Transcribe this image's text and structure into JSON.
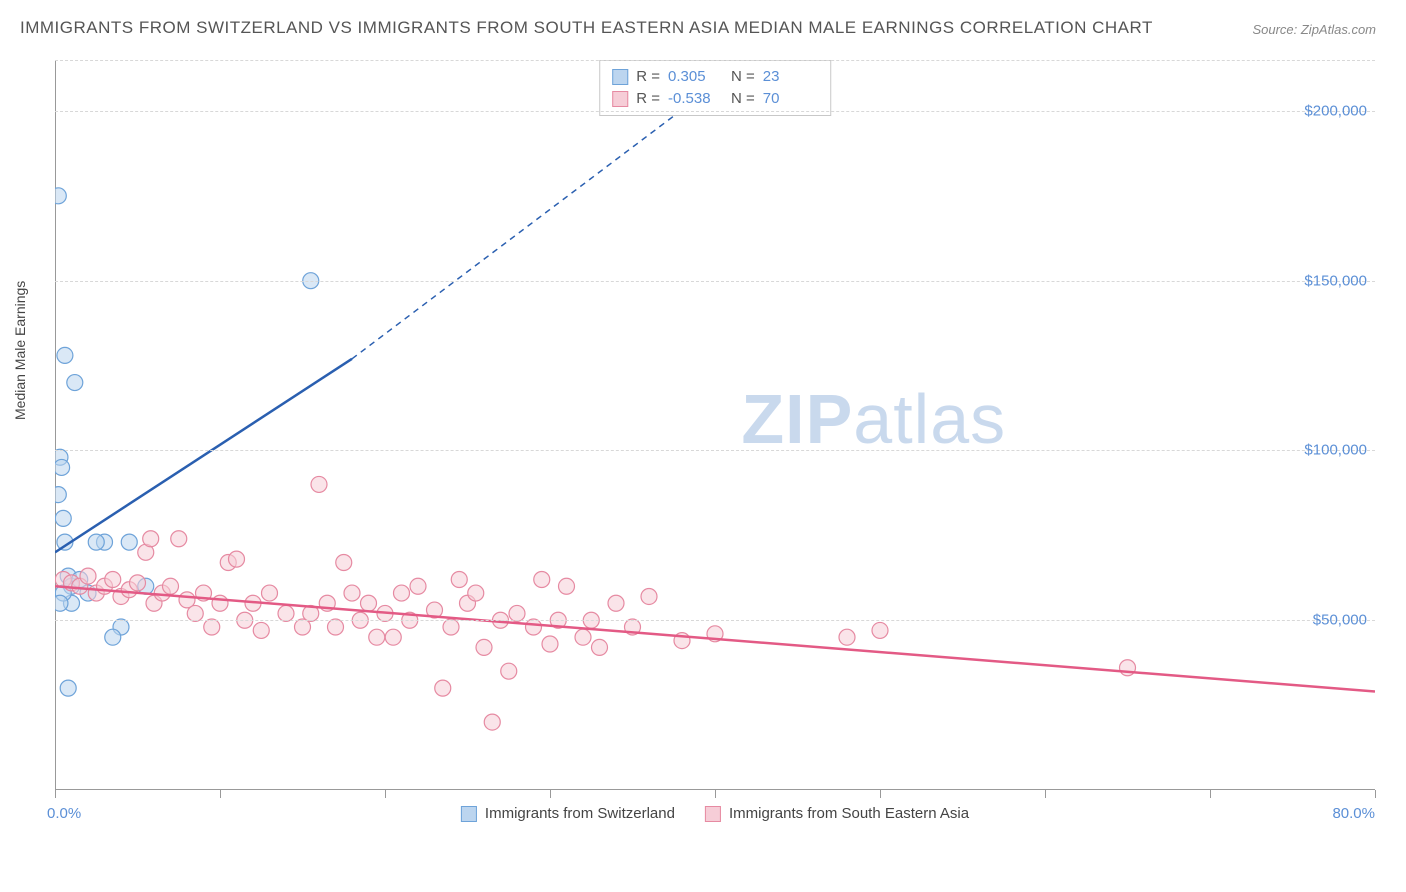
{
  "title": "IMMIGRANTS FROM SWITZERLAND VS IMMIGRANTS FROM SOUTH EASTERN ASIA MEDIAN MALE EARNINGS CORRELATION CHART",
  "source": "Source: ZipAtlas.com",
  "watermark_a": "ZIP",
  "watermark_b": "atlas",
  "y_axis_label": "Median Male Earnings",
  "chart": {
    "type": "scatter",
    "xlim": [
      0,
      80
    ],
    "ylim": [
      0,
      215000
    ],
    "x_tick_positions": [
      0,
      10,
      20,
      30,
      40,
      50,
      60,
      70,
      80
    ],
    "x_lim_labels": {
      "min": "0.0%",
      "max": "80.0%"
    },
    "y_grid": [
      {
        "v": 50000,
        "label": "$50,000"
      },
      {
        "v": 100000,
        "label": "$100,000"
      },
      {
        "v": 150000,
        "label": "$150,000"
      },
      {
        "v": 200000,
        "label": "$200,000"
      }
    ],
    "background_color": "#ffffff",
    "grid_color": "#d8d8d8",
    "axis_color": "#999999",
    "tick_label_color": "#5b8fd6",
    "marker_radius": 8,
    "marker_opacity": 0.55,
    "series": [
      {
        "name": "Immigrants from Switzerland",
        "color_fill": "#bcd5ef",
        "color_stroke": "#6ea3d9",
        "line_color": "#2a5fb0",
        "r_label": "R =",
        "r_value": "0.305",
        "n_label": "N =",
        "n_value": "23",
        "regression": {
          "x1": 0,
          "y1": 70000,
          "x2_solid": 18,
          "y2_solid": 127000,
          "x2": 42,
          "y2": 215000
        },
        "points": [
          [
            0.2,
            175000
          ],
          [
            0.6,
            128000
          ],
          [
            0.3,
            98000
          ],
          [
            0.4,
            95000
          ],
          [
            0.2,
            87000
          ],
          [
            0.5,
            80000
          ],
          [
            0.6,
            73000
          ],
          [
            1.2,
            120000
          ],
          [
            3.0,
            73000
          ],
          [
            2.5,
            73000
          ],
          [
            4.5,
            73000
          ],
          [
            0.8,
            63000
          ],
          [
            1.0,
            60000
          ],
          [
            1.5,
            62000
          ],
          [
            2.0,
            58000
          ],
          [
            1.0,
            55000
          ],
          [
            0.5,
            58000
          ],
          [
            0.3,
            55000
          ],
          [
            4.0,
            48000
          ],
          [
            3.5,
            45000
          ],
          [
            0.8,
            30000
          ],
          [
            5.5,
            60000
          ],
          [
            15.5,
            150000
          ]
        ]
      },
      {
        "name": "Immigrants from South Eastern Asia",
        "color_fill": "#f6cdd7",
        "color_stroke": "#e68aa2",
        "line_color": "#e35a85",
        "r_label": "R =",
        "r_value": "-0.538",
        "n_label": "N =",
        "n_value": "70",
        "regression": {
          "x1": 0,
          "y1": 60000,
          "x2_solid": 80,
          "y2_solid": 29000,
          "x2": 80,
          "y2": 29000
        },
        "points": [
          [
            0.5,
            62000
          ],
          [
            1.0,
            61000
          ],
          [
            1.5,
            60000
          ],
          [
            2.0,
            63000
          ],
          [
            2.5,
            58000
          ],
          [
            3.0,
            60000
          ],
          [
            3.5,
            62000
          ],
          [
            4.0,
            57000
          ],
          [
            4.5,
            59000
          ],
          [
            5.0,
            61000
          ],
          [
            5.5,
            70000
          ],
          [
            6.0,
            55000
          ],
          [
            6.5,
            58000
          ],
          [
            7.0,
            60000
          ],
          [
            7.5,
            74000
          ],
          [
            8.0,
            56000
          ],
          [
            8.5,
            52000
          ],
          [
            9.0,
            58000
          ],
          [
            9.5,
            48000
          ],
          [
            10.0,
            55000
          ],
          [
            10.5,
            67000
          ],
          [
            11.0,
            68000
          ],
          [
            11.5,
            50000
          ],
          [
            12.0,
            55000
          ],
          [
            12.5,
            47000
          ],
          [
            13.0,
            58000
          ],
          [
            14.0,
            52000
          ],
          [
            15.0,
            48000
          ],
          [
            15.5,
            52000
          ],
          [
            16.0,
            90000
          ],
          [
            16.5,
            55000
          ],
          [
            17.0,
            48000
          ],
          [
            17.5,
            67000
          ],
          [
            18.0,
            58000
          ],
          [
            18.5,
            50000
          ],
          [
            19.0,
            55000
          ],
          [
            19.5,
            45000
          ],
          [
            20.0,
            52000
          ],
          [
            20.5,
            45000
          ],
          [
            21.0,
            58000
          ],
          [
            21.5,
            50000
          ],
          [
            22.0,
            60000
          ],
          [
            23.0,
            53000
          ],
          [
            23.5,
            30000
          ],
          [
            24.0,
            48000
          ],
          [
            24.5,
            62000
          ],
          [
            25.0,
            55000
          ],
          [
            25.5,
            58000
          ],
          [
            26.0,
            42000
          ],
          [
            26.5,
            20000
          ],
          [
            27.0,
            50000
          ],
          [
            27.5,
            35000
          ],
          [
            28.0,
            52000
          ],
          [
            29.0,
            48000
          ],
          [
            29.5,
            62000
          ],
          [
            30.0,
            43000
          ],
          [
            30.5,
            50000
          ],
          [
            31.0,
            60000
          ],
          [
            32.0,
            45000
          ],
          [
            32.5,
            50000
          ],
          [
            33.0,
            42000
          ],
          [
            34.0,
            55000
          ],
          [
            35.0,
            48000
          ],
          [
            36.0,
            57000
          ],
          [
            38.0,
            44000
          ],
          [
            40.0,
            46000
          ],
          [
            48.0,
            45000
          ],
          [
            50.0,
            47000
          ],
          [
            65.0,
            36000
          ],
          [
            5.8,
            74000
          ]
        ]
      }
    ],
    "legend_bottom": [
      {
        "swatch_fill": "#bcd5ef",
        "swatch_stroke": "#6ea3d9",
        "label": "Immigrants from Switzerland"
      },
      {
        "swatch_fill": "#f6cdd7",
        "swatch_stroke": "#e68aa2",
        "label": "Immigrants from South Eastern Asia"
      }
    ]
  }
}
